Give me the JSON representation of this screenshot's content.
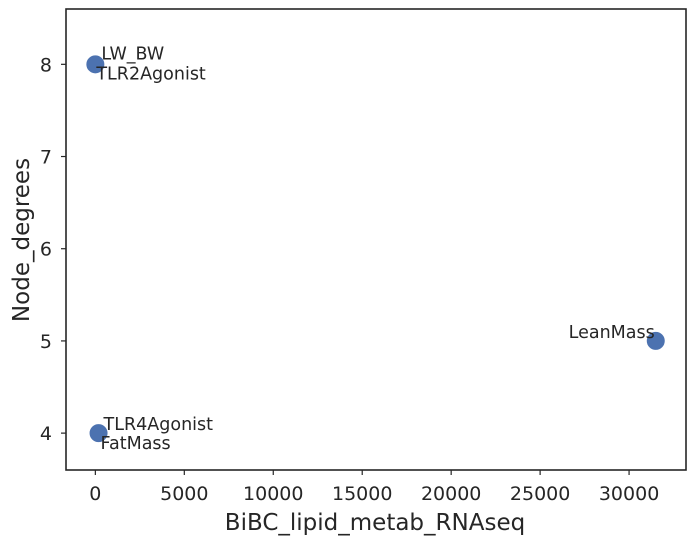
{
  "chart_data": {
    "type": "scatter",
    "title": "",
    "xlabel": "BiBC_lipid_metab_RNAseq",
    "ylabel": "Node_degrees",
    "xlim": [
      -1650,
      33200
    ],
    "ylim": [
      3.6,
      8.6
    ],
    "xticks": [
      0,
      5000,
      10000,
      15000,
      20000,
      25000,
      30000
    ],
    "xtick_labels": [
      "0",
      "5000",
      "10000",
      "15000",
      "20000",
      "25000",
      "30000"
    ],
    "yticks": [
      4,
      5,
      6,
      7,
      8
    ],
    "ytick_labels": [
      "4",
      "5",
      "6",
      "7",
      "8"
    ],
    "grid": false,
    "legend": "none",
    "marker_color": "#4c72b0",
    "points": [
      {
        "x": 0,
        "y": 8
      },
      {
        "x": 180,
        "y": 4
      },
      {
        "x": 31500,
        "y": 5
      }
    ],
    "annotations": [
      {
        "text": "LW_BW",
        "x": 0,
        "y": 8
      },
      {
        "text": "TLR2Agonist",
        "x": 0,
        "y": 8
      },
      {
        "text": "TLR4Agonist",
        "x": 180,
        "y": 4
      },
      {
        "text": "FatMass",
        "x": 180,
        "y": 4
      },
      {
        "text": "LeanMass",
        "x": 31500,
        "y": 5
      }
    ]
  }
}
